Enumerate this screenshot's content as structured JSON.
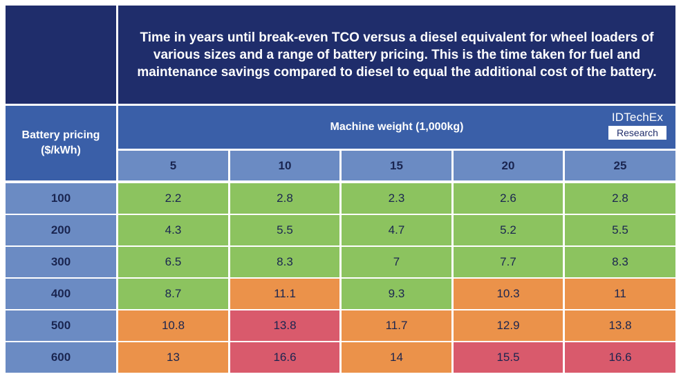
{
  "chart_data": {
    "type": "table",
    "title": "Time in years until break-even TCO versus a diesel equivalent for wheel loaders of various sizes and a range of battery pricing. This is the time taken for fuel and maintenance savings compared to diesel to equal the additional cost of the battery.",
    "row_axis_label": "Battery pricing ($/kWh)",
    "col_axis_label": "Machine weight (1,000kg)",
    "columns": [
      "5",
      "10",
      "15",
      "20",
      "25"
    ],
    "rows": [
      "100",
      "200",
      "300",
      "400",
      "500",
      "600"
    ],
    "values": [
      [
        "2.2",
        "2.8",
        "2.3",
        "2.6",
        "2.8"
      ],
      [
        "4.3",
        "5.5",
        "4.7",
        "5.2",
        "5.5"
      ],
      [
        "6.5",
        "8.3",
        "7",
        "7.7",
        "8.3"
      ],
      [
        "8.7",
        "11.1",
        "9.3",
        "10.3",
        "11"
      ],
      [
        "10.8",
        "13.8",
        "11.7",
        "12.9",
        "13.8"
      ],
      [
        "13",
        "16.6",
        "14",
        "15.5",
        "16.6"
      ]
    ],
    "color_bands": [
      [
        "green",
        "green",
        "green",
        "green",
        "green"
      ],
      [
        "green",
        "green",
        "green",
        "green",
        "green"
      ],
      [
        "green",
        "green",
        "green",
        "green",
        "green"
      ],
      [
        "green",
        "orange",
        "green",
        "orange",
        "orange"
      ],
      [
        "orange",
        "red",
        "orange",
        "orange",
        "orange"
      ],
      [
        "orange",
        "red",
        "orange",
        "red",
        "red"
      ]
    ]
  },
  "colors": {
    "green": "#8cc35f",
    "orange": "#eb924a",
    "red": "#d95a6c"
  },
  "logo": {
    "top_text": "IDTechEx",
    "bottom_text": "Research"
  }
}
